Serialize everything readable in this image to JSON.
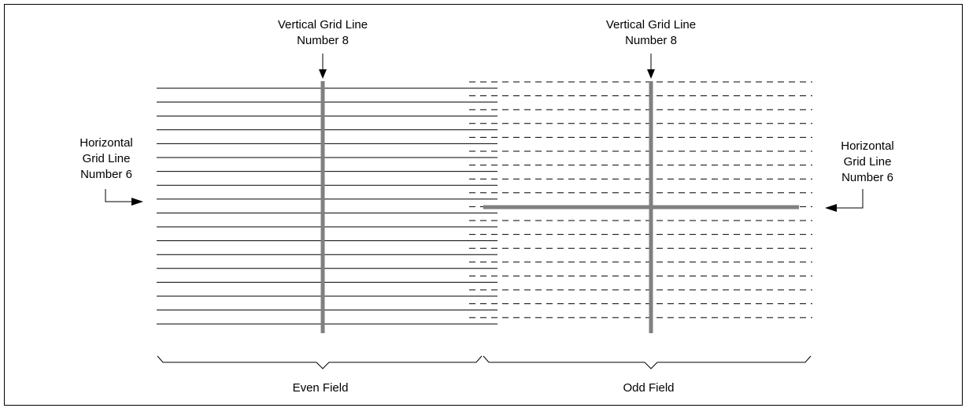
{
  "labels": {
    "left_vertical": [
      "Vertical Grid Line",
      "Number 8"
    ],
    "right_vertical": [
      "Vertical Grid Line",
      "Number 8"
    ],
    "left_horizontal": [
      "Horizontal",
      "Grid Line",
      "Number 6"
    ],
    "right_horizontal": [
      "Horizontal",
      "Grid Line",
      "Number 6"
    ],
    "even_field": "Even Field",
    "odd_field": "Odd Field"
  },
  "colors": {
    "line": "#000000",
    "highlight": "#808080"
  }
}
